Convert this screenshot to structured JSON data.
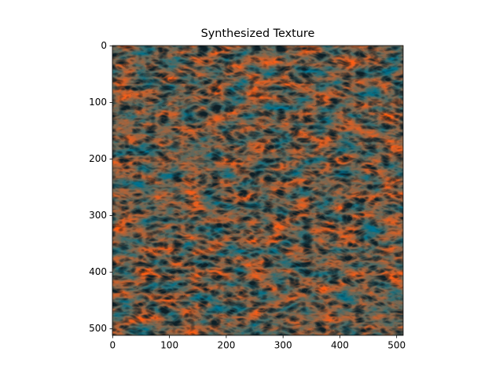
{
  "chart_data": {
    "type": "image",
    "title": "Synthesized Texture",
    "xlim": [
      -0.5,
      511.5
    ],
    "ylim": [
      511.5,
      -0.5
    ],
    "xticks": [
      0,
      100,
      200,
      300,
      400,
      500
    ],
    "yticks": [
      0,
      100,
      200,
      300,
      400,
      500
    ]
  }
}
